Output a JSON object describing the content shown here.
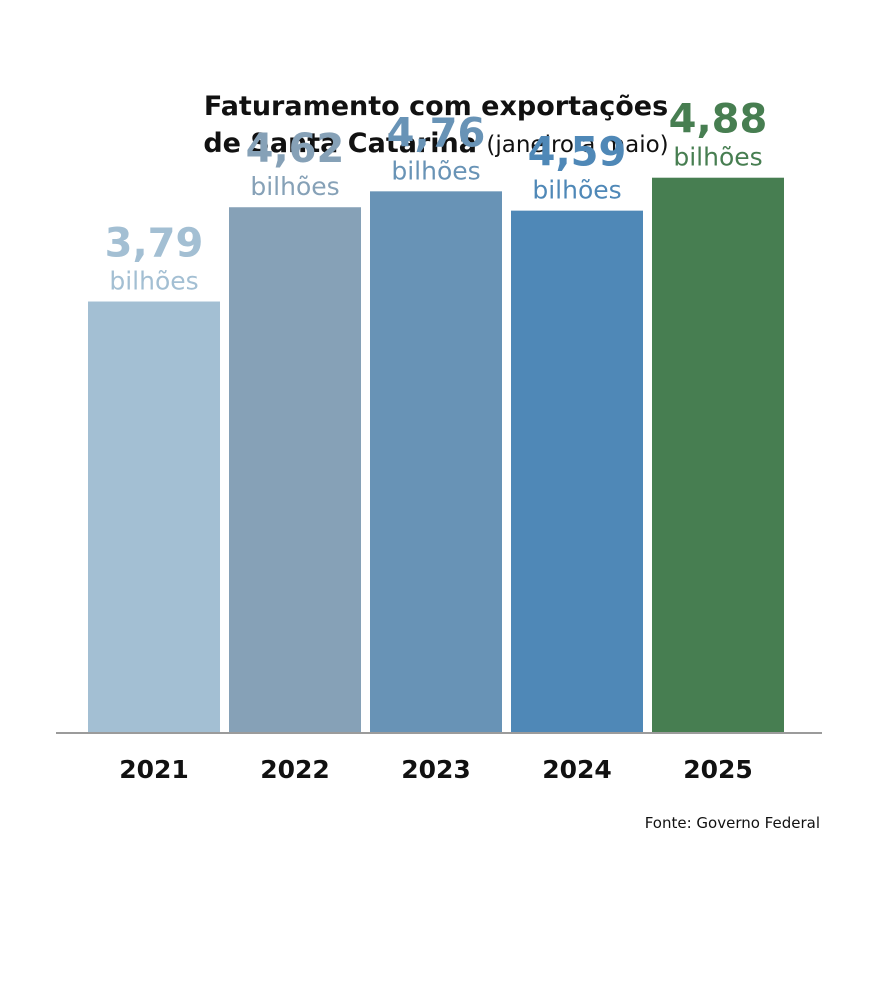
{
  "title": {
    "line1": "Faturamento com exportações",
    "line2_main": "de Santa Catarina",
    "line2_sub": "(janeiro a maio)"
  },
  "chart_data": {
    "type": "bar",
    "categories": [
      "2021",
      "2022",
      "2023",
      "2024",
      "2025"
    ],
    "values": [
      3.79,
      4.62,
      4.76,
      4.59,
      4.88
    ],
    "value_labels": [
      "3,79",
      "4,62",
      "4,76",
      "4,59",
      "4,88"
    ],
    "unit_label": "bilhões",
    "colors": [
      "#a3bfd3",
      "#86a1b7",
      "#6893b6",
      "#4f88b7",
      "#477e51"
    ],
    "label_colors": [
      "#a3bfd3",
      "#86a1b7",
      "#6893b6",
      "#4f88b7",
      "#477e51"
    ],
    "ylim": [
      0,
      5.3
    ],
    "grid": false,
    "legend": "none"
  },
  "source": "Fonte: Governo Federal"
}
